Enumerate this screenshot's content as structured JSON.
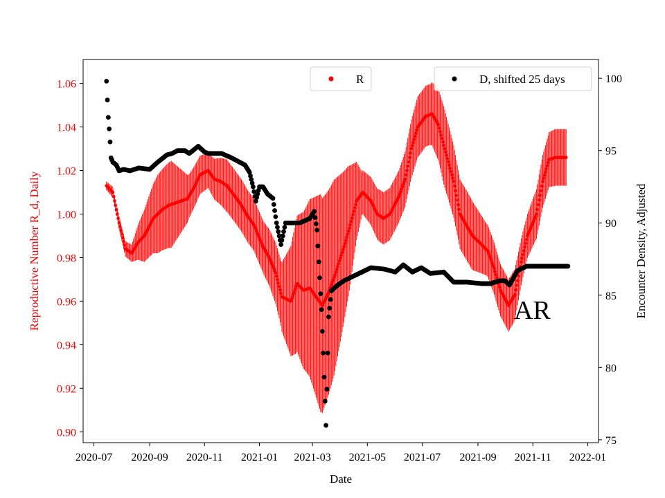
{
  "chart_data": {
    "type": "scatter",
    "xlabel": "Date",
    "ylabel_left": "Reproductive Number R_d, Daily",
    "ylabel_right": "Encounter Density, Adjusted",
    "annotation": "AR",
    "colors": {
      "left_axis": "#ff0000",
      "R": "#ff0000",
      "D": "#000000",
      "axis": "#000000"
    },
    "grid": false,
    "legend_placement": "top-center and top-right (two separate legends)",
    "xlim": [
      "2020-06-19",
      "2022-01-13"
    ],
    "ylim_left": [
      0.895,
      1.071
    ],
    "ylim_right": [
      74.8,
      101.3
    ],
    "x_ticks": [
      "2020-07",
      "2020-09",
      "2020-11",
      "2021-01",
      "2021-03",
      "2021-05",
      "2021-07",
      "2021-09",
      "2021-11",
      "2022-01"
    ],
    "x_tick_dates": [
      "2020-07-01",
      "2020-09-01",
      "2020-11-01",
      "2021-01-01",
      "2021-03-01",
      "2021-05-01",
      "2021-07-01",
      "2021-09-01",
      "2021-11-01",
      "2022-01-01"
    ],
    "y_ticks_left": [
      "0.90",
      "0.92",
      "0.94",
      "0.96",
      "0.98",
      "1.00",
      "1.02",
      "1.04",
      "1.06"
    ],
    "y_ticks_right": [
      "75",
      "80",
      "85",
      "90",
      "95",
      "100"
    ],
    "series": [
      {
        "name": "R",
        "marker": "point",
        "date_range": [
          "2020-07-15",
          "2021-12-08"
        ],
        "anchor_dates": [
          "2020-07-15",
          "2020-07-22",
          "2020-07-29",
          "2020-08-05",
          "2020-08-12",
          "2020-08-19",
          "2020-08-26",
          "2020-09-05",
          "2020-09-15",
          "2020-09-22",
          "2020-09-29",
          "2020-10-06",
          "2020-10-13",
          "2020-10-20",
          "2020-10-27",
          "2020-11-05",
          "2020-11-12",
          "2020-11-19",
          "2020-11-26",
          "2020-12-05",
          "2020-12-12",
          "2020-12-19",
          "2020-12-26",
          "2021-01-05",
          "2021-01-12",
          "2021-01-19",
          "2021-01-26",
          "2021-02-05",
          "2021-02-12",
          "2021-02-19",
          "2021-02-26",
          "2021-03-05",
          "2021-03-12",
          "2021-03-19",
          "2021-03-26",
          "2021-04-05",
          "2021-04-12",
          "2021-04-19",
          "2021-04-26",
          "2021-05-05",
          "2021-05-12",
          "2021-05-19",
          "2021-05-26",
          "2021-06-05",
          "2021-06-12",
          "2021-06-19",
          "2021-06-26",
          "2021-07-05",
          "2021-07-12",
          "2021-07-19",
          "2021-07-26",
          "2021-08-05",
          "2021-08-12",
          "2021-08-19",
          "2021-08-26",
          "2021-09-05",
          "2021-09-12",
          "2021-09-19",
          "2021-09-26",
          "2021-10-05",
          "2021-10-12",
          "2021-10-19",
          "2021-10-26",
          "2021-11-05",
          "2021-11-12",
          "2021-11-19",
          "2021-11-26",
          "2021-12-08"
        ],
        "anchor_values": [
          1.013,
          1.01,
          0.996,
          0.984,
          0.982,
          0.987,
          0.99,
          0.998,
          1.002,
          1.004,
          1.005,
          1.006,
          1.007,
          1.012,
          1.018,
          1.02,
          1.016,
          1.015,
          1.013,
          1.008,
          1.004,
          0.999,
          0.995,
          0.985,
          0.98,
          0.973,
          0.962,
          0.96,
          0.968,
          0.965,
          0.966,
          0.962,
          0.958,
          0.964,
          0.972,
          0.985,
          0.995,
          1.006,
          1.01,
          1.006,
          1.0,
          0.998,
          1.0,
          1.008,
          1.016,
          1.03,
          1.04,
          1.045,
          1.046,
          1.041,
          1.03,
          1.015,
          1.0,
          0.995,
          0.99,
          0.986,
          0.983,
          0.975,
          0.965,
          0.958,
          0.963,
          0.978,
          0.99,
          1.0,
          1.015,
          1.025,
          1.026,
          1.026
        ],
        "spread_dates": [
          "2020-07-15",
          "2020-07-29",
          "2020-08-12",
          "2020-08-26",
          "2020-09-10",
          "2020-09-25",
          "2020-10-15",
          "2020-11-05",
          "2020-11-25",
          "2020-12-15",
          "2021-01-05",
          "2021-01-25",
          "2021-02-10",
          "2021-02-25",
          "2021-03-10",
          "2021-03-25",
          "2021-04-10",
          "2021-04-25",
          "2021-05-15",
          "2021-06-05",
          "2021-06-25",
          "2021-07-10",
          "2021-07-25",
          "2021-08-10",
          "2021-08-25",
          "2021-09-10",
          "2021-09-25",
          "2021-10-10",
          "2021-10-25",
          "2021-11-10",
          "2021-11-25",
          "2021-12-08"
        ],
        "spread_values": [
          0.002,
          0.003,
          0.004,
          0.012,
          0.018,
          0.02,
          0.01,
          0.008,
          0.012,
          0.012,
          0.012,
          0.015,
          0.03,
          0.04,
          0.05,
          0.045,
          0.03,
          0.01,
          0.012,
          0.012,
          0.014,
          0.014,
          0.018,
          0.016,
          0.016,
          0.012,
          0.012,
          0.012,
          0.01,
          0.012,
          0.013,
          0.013
        ],
        "error_band_estimated": true
      },
      {
        "name": "D, shifted 25 days",
        "marker": "point",
        "anchor_dates": [
          "2020-07-15",
          "2020-07-16",
          "2020-07-17",
          "2020-07-18",
          "2020-07-19",
          "2020-07-20",
          "2020-07-22",
          "2020-07-26",
          "2020-07-29",
          "2020-08-03",
          "2020-08-10",
          "2020-08-20",
          "2020-09-01",
          "2020-09-10",
          "2020-09-20",
          "2020-09-26",
          "2020-10-02",
          "2020-10-10",
          "2020-10-15",
          "2020-10-25",
          "2020-11-01",
          "2020-11-05",
          "2020-11-12",
          "2020-11-20",
          "2020-12-01",
          "2020-12-10",
          "2020-12-16",
          "2020-12-21",
          "2020-12-25",
          "2020-12-28",
          "2021-01-01",
          "2021-01-05",
          "2021-01-10",
          "2021-01-16",
          "2021-01-20",
          "2021-01-25",
          "2021-01-30",
          "2021-02-03",
          "2021-02-15",
          "2021-02-26",
          "2021-03-03",
          "2021-03-06",
          "2021-03-11",
          "2021-03-13",
          "2021-03-16",
          "2021-03-19",
          "2021-03-22",
          "2021-03-27",
          "2021-04-05",
          "2021-04-15",
          "2021-04-25",
          "2021-05-05",
          "2021-05-20",
          "2021-06-01",
          "2021-06-10",
          "2021-06-20",
          "2021-06-30",
          "2021-07-10",
          "2021-07-25",
          "2021-08-05",
          "2021-08-20",
          "2021-09-05",
          "2021-09-15",
          "2021-09-25",
          "2021-10-01",
          "2021-10-06",
          "2021-10-15",
          "2021-10-25",
          "2021-11-05",
          "2021-12-10"
        ],
        "anchor_values": [
          99.8,
          98.5,
          97.3,
          96.5,
          95.6,
          94.5,
          94.2,
          94.0,
          93.6,
          93.7,
          93.6,
          93.8,
          93.7,
          94.2,
          94.7,
          94.8,
          95.0,
          95.0,
          94.8,
          95.3,
          94.9,
          94.8,
          94.8,
          94.8,
          94.5,
          94.2,
          94.0,
          93.5,
          92.5,
          91.5,
          92.5,
          92.5,
          92.0,
          91.7,
          90.0,
          88.5,
          90.0,
          90.0,
          90.0,
          90.3,
          90.8,
          89.5,
          84.0,
          81.0,
          76.0,
          83.5,
          85.3,
          85.6,
          86.0,
          86.3,
          86.6,
          86.9,
          86.8,
          86.6,
          87.1,
          86.6,
          86.9,
          86.5,
          86.6,
          85.9,
          85.9,
          85.8,
          85.8,
          86.0,
          86.0,
          85.7,
          86.7,
          87.0,
          87.0,
          87.0
        ],
        "date_range": [
          "2020-07-15",
          "2021-12-10"
        ]
      }
    ]
  }
}
